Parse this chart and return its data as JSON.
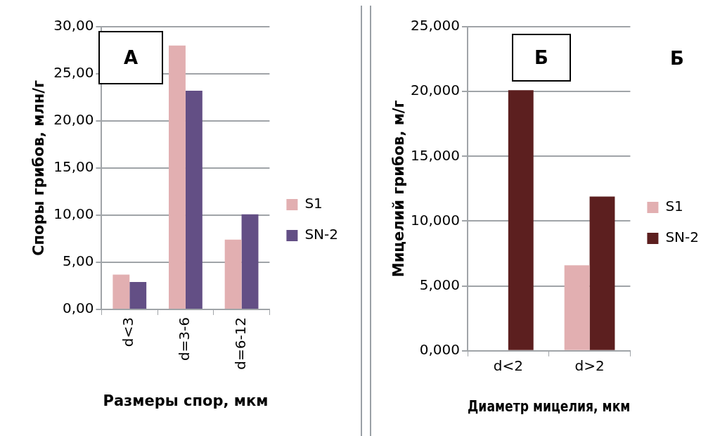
{
  "chart_data": [
    {
      "type": "bar",
      "xlabel": "Размеры спор, мкм",
      "ylabel": "Споры грибов, млн/г",
      "categories": [
        "d<3",
        "d=3-6",
        "d=6-12"
      ],
      "series": [
        {
          "name": "S1",
          "color": "#e2afb1",
          "values": [
            3.7,
            28.0,
            7.4
          ]
        },
        {
          "name": "SN-2",
          "color": "#634f85",
          "values": [
            2.9,
            23.2,
            10.1
          ]
        }
      ],
      "ylim": [
        0,
        30
      ],
      "yticks": [
        {
          "value": 0,
          "label": "0,00"
        },
        {
          "value": 5,
          "label": "5,00"
        },
        {
          "value": 10,
          "label": "10,00"
        },
        {
          "value": 15,
          "label": "15,00"
        },
        {
          "value": 20,
          "label": "20,00"
        },
        {
          "value": 25,
          "label": "25,00"
        },
        {
          "value": 30,
          "label": "30,00"
        }
      ],
      "grid": "y",
      "legend": "right",
      "annotations": [
        "А"
      ]
    },
    {
      "type": "bar",
      "xlabel": "Диаметр мицелия, мкм",
      "ylabel": "Мицелий грибов, м/г",
      "categories": [
        "d<2",
        "d>2"
      ],
      "series": [
        {
          "name": "S1",
          "color": "#e2afb1",
          "values": [
            0,
            6.6
          ]
        },
        {
          "name": "SN-2",
          "color": "#5c1f1f",
          "values": [
            20.1,
            11.9
          ]
        }
      ],
      "ylim": [
        0,
        25
      ],
      "yticks": [
        {
          "value": 0,
          "label": "0,000"
        },
        {
          "value": 5,
          "label": "5,000"
        },
        {
          "value": 10,
          "label": "10,000"
        },
        {
          "value": 15,
          "label": "15,000"
        },
        {
          "value": 20,
          "label": "20,000"
        },
        {
          "value": 25,
          "label": "25,000"
        }
      ],
      "grid": "y",
      "legend": "right",
      "annotations": [
        "Б",
        "Б"
      ]
    }
  ]
}
